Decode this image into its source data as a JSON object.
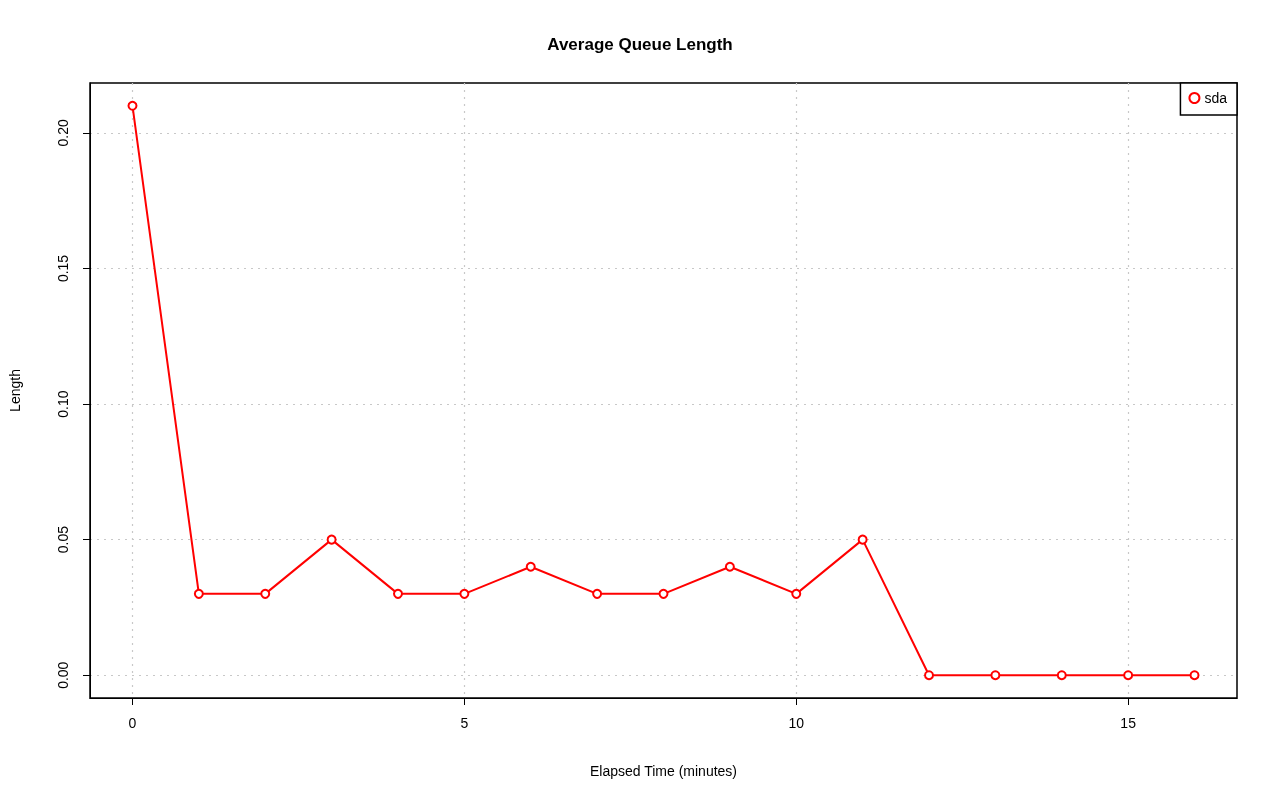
{
  "chart_data": {
    "type": "line",
    "title": "Average Queue Length",
    "xlabel": "Elapsed Time (minutes)",
    "ylabel": "Length",
    "x": [
      0,
      1,
      2,
      3,
      4,
      5,
      6,
      7,
      8,
      9,
      10,
      11,
      12,
      13,
      14,
      15,
      16
    ],
    "series": [
      {
        "name": "sda",
        "color": "#ff0000",
        "values": [
          0.21,
          0.03,
          0.03,
          0.05,
          0.03,
          0.03,
          0.04,
          0.03,
          0.03,
          0.04,
          0.03,
          0.05,
          0,
          0,
          0,
          0,
          0
        ]
      }
    ],
    "xlim": [
      -0.64,
      16.64
    ],
    "xticks": [
      0,
      5,
      10,
      15
    ],
    "ylim": [
      -0.0084,
      0.2184
    ],
    "yticks": [
      {
        "value": 0,
        "label": "0.00"
      },
      {
        "value": 0.05,
        "label": "0.05"
      },
      {
        "value": 0.1,
        "label": "0.10"
      },
      {
        "value": 0.15,
        "label": "0.15"
      },
      {
        "value": 0.2,
        "label": "0.20"
      }
    ],
    "grid": true,
    "legend": "top right",
    "marker": "circle",
    "line_style": "solid"
  }
}
